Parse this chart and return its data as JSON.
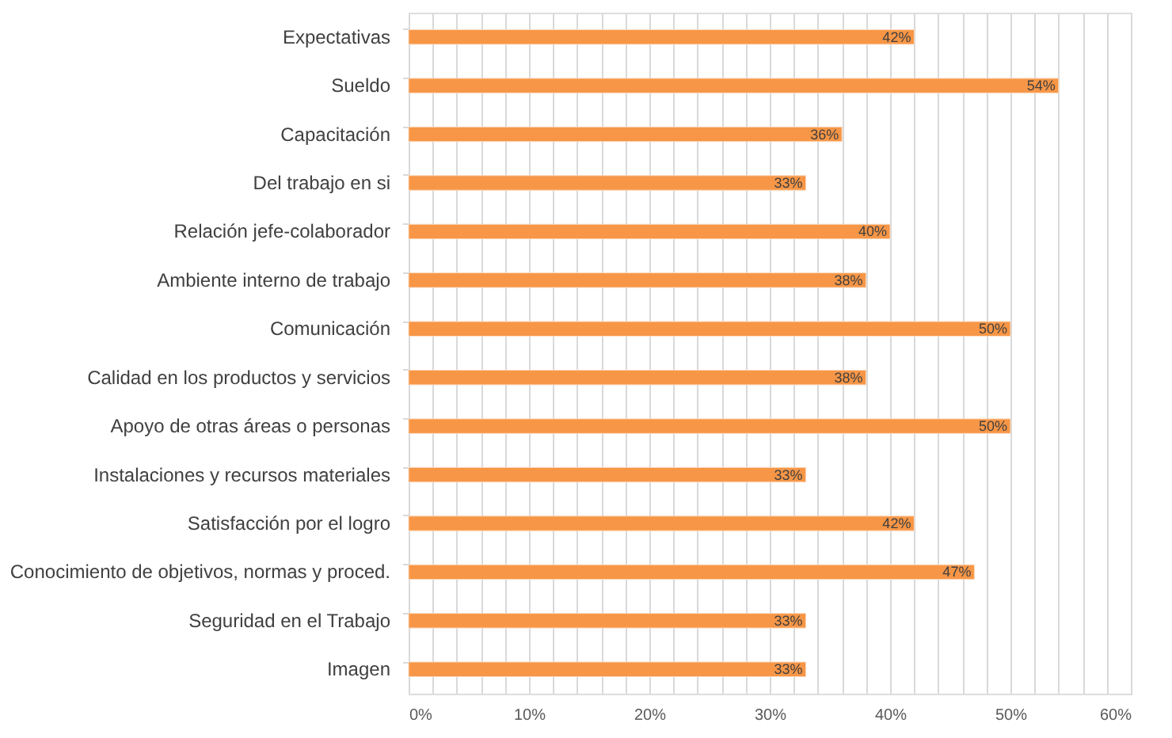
{
  "chart_data": {
    "type": "bar",
    "orientation": "horizontal",
    "categories": [
      "Expectativas",
      "Sueldo",
      "Capacitación",
      "Del trabajo en si",
      "Relación jefe-colaborador",
      "Ambiente interno de trabajo",
      "Comunicación",
      "Calidad en los productos y servicios ",
      "Apoyo de otras áreas o personas",
      "Instalaciones y recursos materiales",
      "Satisfacción por el logro",
      "Conocimiento de objetivos, normas y proced.",
      "Seguridad en el Trabajo",
      "Imagen"
    ],
    "values": [
      42,
      54,
      36,
      33,
      40,
      38,
      50,
      38,
      50,
      33,
      42,
      47,
      33,
      33
    ],
    "value_labels": [
      "42%",
      "54%",
      "36%",
      "33%",
      "40%",
      "38%",
      "50%",
      "38%",
      "50%",
      "33%",
      "42%",
      "47%",
      "33%",
      "33%"
    ],
    "color": "#f79646",
    "xlim": [
      0,
      60
    ],
    "xticks": [
      {
        "value": 0,
        "label": "0%"
      },
      {
        "value": 2,
        "label": null
      },
      {
        "value": 4,
        "label": null
      },
      {
        "value": 6,
        "label": null
      },
      {
        "value": 8,
        "label": null
      },
      {
        "value": 10,
        "label": "10%"
      },
      {
        "value": 12,
        "label": null
      },
      {
        "value": 14,
        "label": null
      },
      {
        "value": 16,
        "label": null
      },
      {
        "value": 18,
        "label": null
      },
      {
        "value": 20,
        "label": "20%"
      },
      {
        "value": 22,
        "label": null
      },
      {
        "value": 24,
        "label": null
      },
      {
        "value": 26,
        "label": null
      },
      {
        "value": 28,
        "label": null
      },
      {
        "value": 30,
        "label": "30%"
      },
      {
        "value": 32,
        "label": null
      },
      {
        "value": 34,
        "label": null
      },
      {
        "value": 36,
        "label": null
      },
      {
        "value": 38,
        "label": null
      },
      {
        "value": 40,
        "label": "40%"
      },
      {
        "value": 42,
        "label": null
      },
      {
        "value": 44,
        "label": null
      },
      {
        "value": 46,
        "label": null
      },
      {
        "value": 48,
        "label": null
      },
      {
        "value": 50,
        "label": "50%"
      },
      {
        "value": 52,
        "label": null
      },
      {
        "value": 54,
        "label": null
      },
      {
        "value": 56,
        "label": null
      },
      {
        "value": 58,
        "label": null
      },
      {
        "value": 60,
        "label": "60%"
      }
    ],
    "grid": "x"
  }
}
